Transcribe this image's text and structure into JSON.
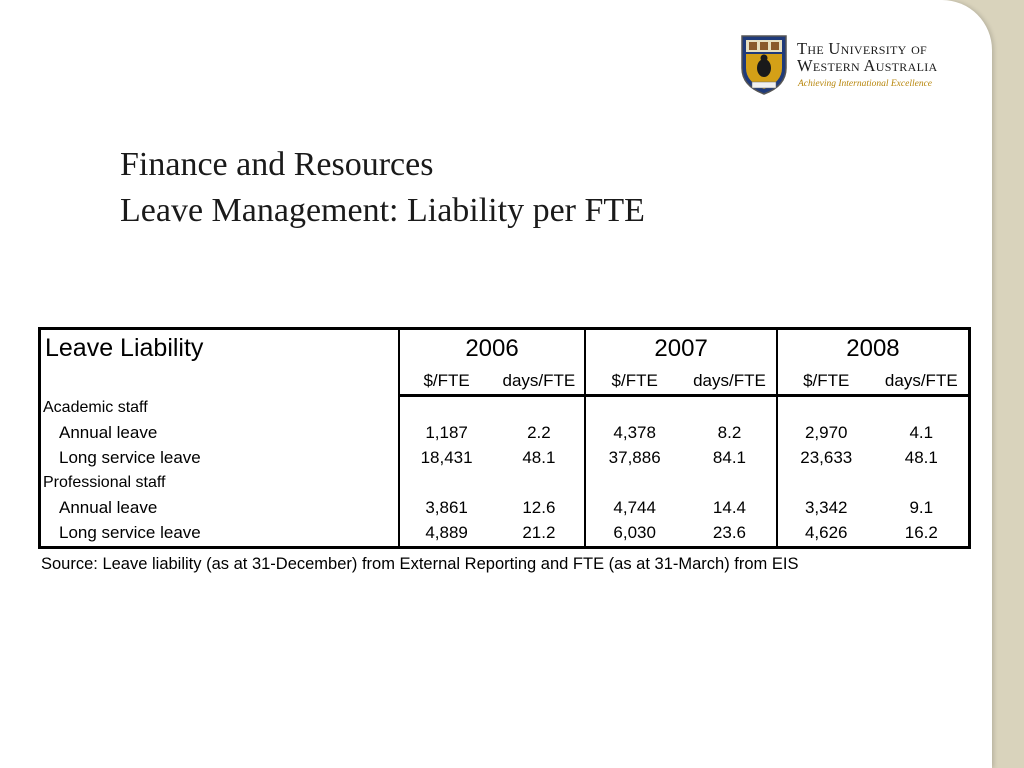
{
  "logo": {
    "name_line1": "The University of",
    "name_line2": "Western Australia",
    "tagline": "Achieving International Excellence"
  },
  "title": {
    "line1": "Finance and Resources",
    "line2": "Leave Management: Liability per FTE"
  },
  "table": {
    "title": "Leave Liability",
    "years": [
      "2006",
      "2007",
      "2008"
    ],
    "units": [
      "$/FTE",
      "days/FTE"
    ],
    "sections": [
      {
        "name": "Academic staff",
        "rows": [
          {
            "label": "Annual leave",
            "values": [
              "1,187",
              "2.2",
              "4,378",
              "8.2",
              "2,970",
              "4.1"
            ]
          },
          {
            "label": "Long service leave",
            "values": [
              "18,431",
              "48.1",
              "37,886",
              "84.1",
              "23,633",
              "48.1"
            ]
          }
        ]
      },
      {
        "name": "Professional staff",
        "rows": [
          {
            "label": "Annual leave",
            "values": [
              "3,861",
              "12.6",
              "4,744",
              "14.4",
              "3,342",
              "9.1"
            ]
          },
          {
            "label": "Long service leave",
            "values": [
              "4,889",
              "21.2",
              "6,030",
              "23.6",
              "4,626",
              "16.2"
            ]
          }
        ]
      }
    ]
  },
  "source": "Source: Leave liability (as at 31-December) from External Reporting and FTE (as at 31-March) from EIS",
  "colors": {
    "background_border": "#d9d3bc",
    "tagline": "#b8860b",
    "crest_blue": "#1f3a7a",
    "crest_gold": "#d4a017"
  }
}
